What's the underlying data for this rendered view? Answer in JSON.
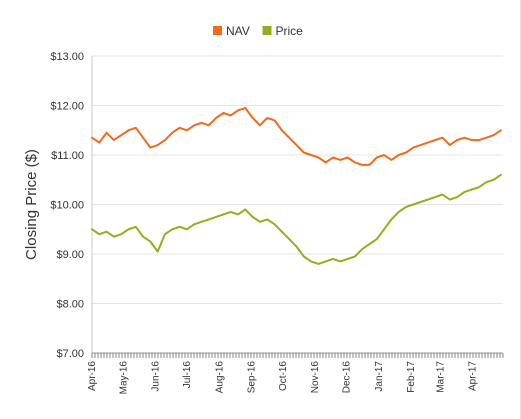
{
  "chart_data": {
    "type": "line",
    "title": "",
    "xlabel": "",
    "ylabel": "Closing Price ($)",
    "ylim": [
      7,
      13
    ],
    "y_ticks": [
      "$7.00",
      "$8.00",
      "$9.00",
      "$10.00",
      "$11.00",
      "$12.00",
      "$13.00"
    ],
    "y_tick_values": [
      7,
      8,
      9,
      10,
      11,
      12,
      13
    ],
    "x_ticks": [
      "Apr-16",
      "May-16",
      "Jun-16",
      "Jul-16",
      "Aug-16",
      "Sep-16",
      "Oct-16",
      "Nov-16",
      "Dec-16",
      "Jan-17",
      "Feb-17",
      "Mar-17",
      "Apr-17"
    ],
    "grid": "horizontal",
    "legend": "top-center",
    "x": [
      "2016-04-01",
      "2016-04-08",
      "2016-04-15",
      "2016-04-22",
      "2016-04-29",
      "2016-05-06",
      "2016-05-13",
      "2016-05-20",
      "2016-05-27",
      "2016-06-03",
      "2016-06-10",
      "2016-06-17",
      "2016-06-24",
      "2016-07-01",
      "2016-07-08",
      "2016-07-15",
      "2016-07-22",
      "2016-07-29",
      "2016-08-05",
      "2016-08-12",
      "2016-08-19",
      "2016-08-26",
      "2016-09-02",
      "2016-09-09",
      "2016-09-16",
      "2016-09-23",
      "2016-09-30",
      "2016-10-07",
      "2016-10-14",
      "2016-10-21",
      "2016-10-28",
      "2016-11-04",
      "2016-11-11",
      "2016-11-18",
      "2016-11-25",
      "2016-12-02",
      "2016-12-09",
      "2016-12-16",
      "2016-12-23",
      "2016-12-30",
      "2017-01-06",
      "2017-01-13",
      "2017-01-20",
      "2017-01-27",
      "2017-02-03",
      "2017-02-10",
      "2017-02-17",
      "2017-02-24",
      "2017-03-03",
      "2017-03-10",
      "2017-03-17",
      "2017-03-24",
      "2017-03-31",
      "2017-04-07",
      "2017-04-14",
      "2017-04-21",
      "2017-04-28"
    ],
    "series": [
      {
        "name": "NAV",
        "color": "#f26a1b",
        "values": [
          11.35,
          11.25,
          11.45,
          11.3,
          11.4,
          11.5,
          11.55,
          11.35,
          11.15,
          11.2,
          11.3,
          11.45,
          11.55,
          11.5,
          11.6,
          11.65,
          11.6,
          11.75,
          11.85,
          11.8,
          11.9,
          11.95,
          11.75,
          11.6,
          11.75,
          11.7,
          11.5,
          11.35,
          11.2,
          11.05,
          11.0,
          10.95,
          10.85,
          10.95,
          10.9,
          10.95,
          10.85,
          10.8,
          10.8,
          10.95,
          11.0,
          10.9,
          11.0,
          11.05,
          11.15,
          11.2,
          11.25,
          11.3,
          11.35,
          11.2,
          11.3,
          11.35,
          11.3,
          11.3,
          11.35,
          11.4,
          11.5
        ]
      },
      {
        "name": "Price",
        "color": "#9aab1e",
        "values": [
          9.5,
          9.4,
          9.45,
          9.35,
          9.4,
          9.5,
          9.55,
          9.35,
          9.25,
          9.05,
          9.4,
          9.5,
          9.55,
          9.5,
          9.6,
          9.65,
          9.7,
          9.75,
          9.8,
          9.85,
          9.8,
          9.9,
          9.75,
          9.65,
          9.7,
          9.6,
          9.45,
          9.3,
          9.15,
          8.95,
          8.85,
          8.8,
          8.85,
          8.9,
          8.85,
          8.9,
          8.95,
          9.1,
          9.2,
          9.3,
          9.5,
          9.7,
          9.85,
          9.95,
          10.0,
          10.05,
          10.1,
          10.15,
          10.2,
          10.1,
          10.15,
          10.25,
          10.3,
          10.35,
          10.45,
          10.5,
          10.6
        ]
      }
    ]
  }
}
